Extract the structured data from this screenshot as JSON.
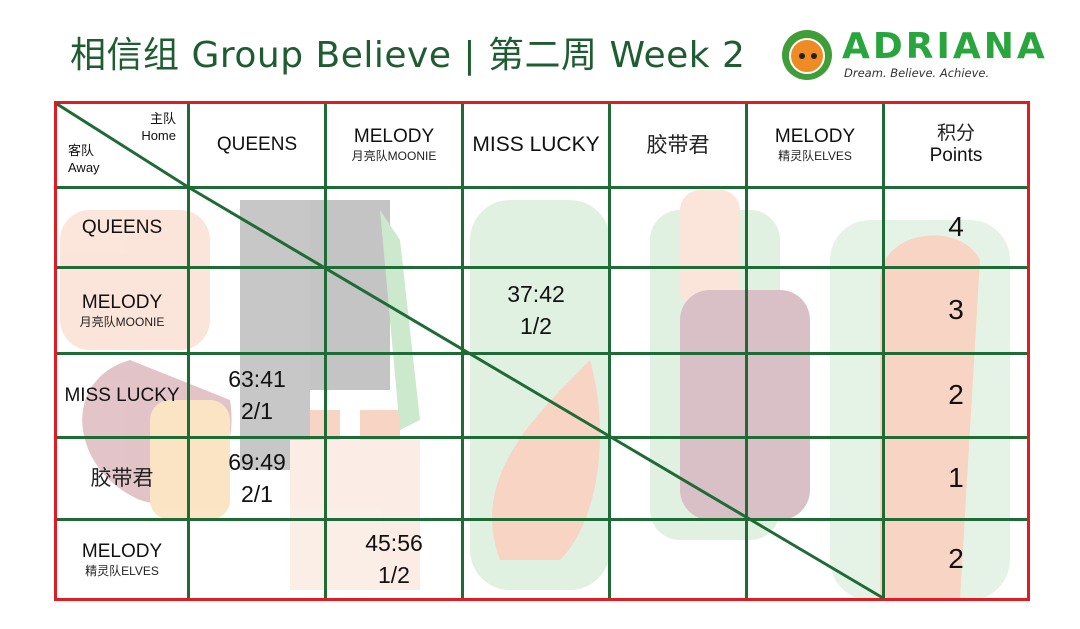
{
  "title": {
    "zh": "相信组",
    "en": "Group Believe",
    "sep": "|",
    "week_zh": "第二周",
    "week_en": "Week 2"
  },
  "logo": {
    "word": "ADRIANA",
    "tagline": "Dream. Believe. Achieve."
  },
  "corner": {
    "home_zh": "主队",
    "home_en": "Home",
    "away_zh": "客队",
    "away_en": "Away"
  },
  "columns": [
    {
      "en": "QUEENS",
      "sub": ""
    },
    {
      "en": "MELODY",
      "sub": "月亮队MOONIE"
    },
    {
      "en": "MISS LUCKY",
      "sub": ""
    },
    {
      "zh": "胶带君"
    },
    {
      "en": "MELODY",
      "sub": "精灵队ELVES"
    }
  ],
  "points_header": {
    "zh": "积分",
    "en": "Points"
  },
  "rows": [
    {
      "en": "QUEENS",
      "sub": "",
      "points": "4"
    },
    {
      "en": "MELODY",
      "sub": "月亮队MOONIE",
      "points": "3"
    },
    {
      "en": "MISS LUCKY",
      "sub": "",
      "points": "2"
    },
    {
      "zh": "胶带君",
      "points": "1"
    },
    {
      "en": "MELODY",
      "sub": "精灵队ELVES",
      "points": "2"
    }
  ],
  "results": {
    "r1c2": {
      "score": "37:42",
      "sets": "1/2"
    },
    "r2c0": {
      "score": "63:41",
      "sets": "2/1"
    },
    "r3c0": {
      "score": "69:49",
      "sets": "2/1"
    },
    "r4c1": {
      "score": "45:56",
      "sets": "1/2"
    }
  }
}
